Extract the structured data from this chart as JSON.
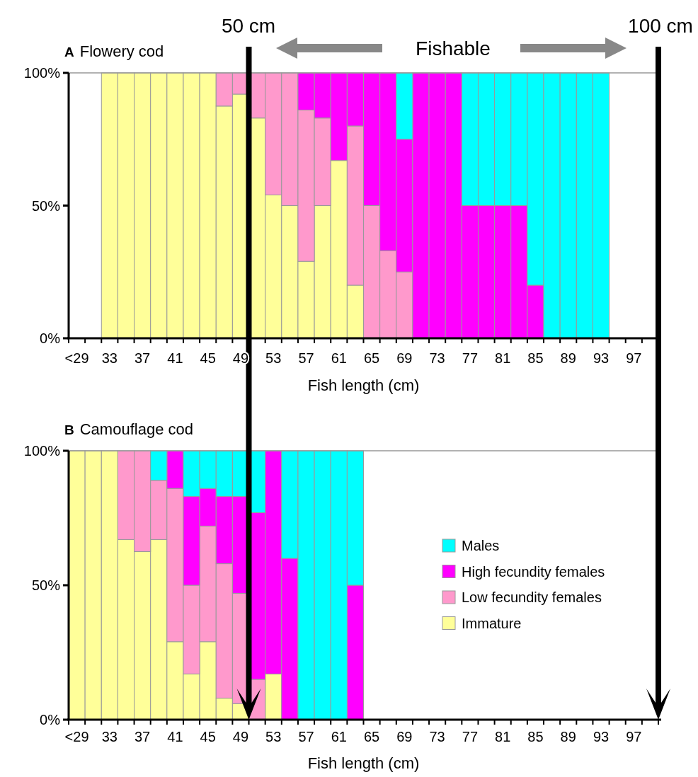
{
  "chart_data": [
    {
      "type": "bar",
      "stacked": true,
      "title": "A Flowery cod",
      "xlabel": "Fish length (cm)",
      "grid": false,
      "legend": false,
      "categories": [
        "<29",
        null,
        "33",
        null,
        "37",
        null,
        "41",
        null,
        "45",
        null,
        "49",
        null,
        "53",
        null,
        "57",
        null,
        "61",
        null,
        "65",
        null,
        "69",
        null,
        "73",
        null,
        "77",
        null,
        "81",
        null,
        "85",
        null,
        "89",
        null,
        "93",
        null,
        "97",
        null
      ],
      "ylim": [
        0,
        100
      ],
      "yticks": [
        {
          "value": 0,
          "label": "0%"
        },
        {
          "value": 50,
          "label": "50%"
        },
        {
          "value": 100,
          "label": "100%"
        }
      ],
      "series": [
        {
          "color": "#ffff99",
          "values": [
            null,
            null,
            100,
            100,
            100,
            100,
            100,
            100,
            100,
            87.5,
            92,
            83,
            54,
            50,
            29,
            50,
            67,
            20,
            0,
            0,
            0,
            0,
            0,
            0,
            0,
            0,
            0,
            0,
            0,
            0,
            0,
            0,
            0,
            null,
            null,
            null
          ]
        },
        {
          "color": "#ff99cc",
          "values": [
            null,
            null,
            0,
            0,
            0,
            0,
            0,
            0,
            0,
            12.5,
            8,
            17,
            46,
            50,
            57,
            33,
            0,
            60,
            50,
            33,
            25,
            0,
            0,
            0,
            0,
            0,
            0,
            0,
            0,
            0,
            0,
            0,
            0,
            null,
            null,
            null
          ]
        },
        {
          "color": "#ff00ff",
          "values": [
            null,
            null,
            0,
            0,
            0,
            0,
            0,
            0,
            0,
            0,
            0,
            0,
            0,
            0,
            14,
            17,
            33,
            20,
            50,
            67,
            50,
            100,
            100,
            100,
            50,
            50,
            50,
            50,
            20,
            0,
            0,
            0,
            0,
            null,
            null,
            null
          ]
        },
        {
          "color": "#00ffff",
          "values": [
            null,
            null,
            0,
            0,
            0,
            0,
            0,
            0,
            0,
            0,
            0,
            0,
            0,
            0,
            0,
            0,
            0,
            0,
            0,
            0,
            25,
            0,
            0,
            0,
            50,
            50,
            50,
            50,
            80,
            100,
            100,
            100,
            100,
            null,
            null,
            null
          ]
        }
      ],
      "annotations": [
        "50 cm",
        "Fishable",
        "100 cm"
      ]
    },
    {
      "type": "bar",
      "stacked": true,
      "title": "B Camouflage cod",
      "xlabel": "Fish length (cm)",
      "grid": false,
      "legend": "right",
      "categories": [
        "<29",
        null,
        "33",
        null,
        "37",
        null,
        "41",
        null,
        "45",
        null,
        "49",
        null,
        "53",
        null,
        "57",
        null,
        "61",
        null,
        "65",
        null,
        "69",
        null,
        "73",
        null,
        "77",
        null,
        "81",
        null,
        "85",
        null,
        "89",
        null,
        "93",
        null,
        "97",
        null
      ],
      "ylim": [
        0,
        100
      ],
      "yticks": [
        {
          "value": 0,
          "label": "0%"
        },
        {
          "value": 50,
          "label": "50%"
        },
        {
          "value": 100,
          "label": "100%"
        }
      ],
      "series": [
        {
          "name": "Immature",
          "color": "#ffff99",
          "values": [
            100,
            100,
            100,
            67,
            62.5,
            67,
            29,
            17,
            29,
            8,
            6,
            0,
            17,
            0,
            0,
            0,
            0,
            0,
            null,
            null,
            null,
            null,
            null,
            null,
            null,
            null,
            null,
            null,
            null,
            null,
            null,
            null,
            null,
            null,
            null,
            null
          ]
        },
        {
          "name": "Low fecundity females",
          "color": "#ff99cc",
          "values": [
            0,
            0,
            0,
            33,
            37.5,
            22,
            57,
            33,
            43,
            50,
            41,
            15,
            0,
            0,
            0,
            0,
            0,
            0,
            null,
            null,
            null,
            null,
            null,
            null,
            null,
            null,
            null,
            null,
            null,
            null,
            null,
            null,
            null,
            null,
            null,
            null
          ]
        },
        {
          "name": "High fecundity females",
          "color": "#ff00ff",
          "values": [
            0,
            0,
            0,
            0,
            0,
            0,
            14,
            33,
            14,
            25,
            36,
            62,
            83,
            60,
            0,
            0,
            0,
            50,
            null,
            null,
            null,
            null,
            null,
            null,
            null,
            null,
            null,
            null,
            null,
            null,
            null,
            null,
            null,
            null,
            null,
            null
          ]
        },
        {
          "name": "Males",
          "color": "#00ffff",
          "values": [
            0,
            0,
            0,
            0,
            0,
            11,
            0,
            17,
            14,
            17,
            17,
            23,
            0,
            40,
            100,
            100,
            100,
            50,
            null,
            null,
            null,
            null,
            null,
            null,
            null,
            null,
            null,
            null,
            null,
            null,
            null,
            null,
            null,
            null,
            null,
            null
          ]
        }
      ]
    }
  ]
}
